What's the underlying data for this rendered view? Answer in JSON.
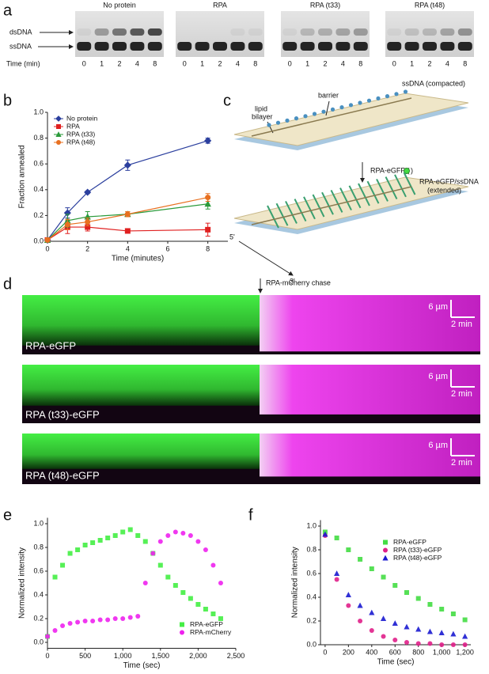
{
  "panel_labels": [
    "a",
    "b",
    "c",
    "d",
    "e",
    "f"
  ],
  "gel": {
    "lanes": [
      "No protein",
      "RPA",
      "RPA (t33)",
      "RPA (t48)"
    ],
    "bands": [
      "dsDNA",
      "ssDNA"
    ],
    "time_label": "Time (min)",
    "times": [
      0,
      1,
      2,
      4,
      8
    ]
  },
  "diagram": {
    "lipid_bilayer": [
      "lipid",
      "bilayer"
    ],
    "barrier": "barrier",
    "compacted": "ssDNA (compacted)",
    "protein": [
      "RPA-eGFP (",
      ")"
    ],
    "extended": [
      "RPA-eGFP/ssDNA",
      "(extended)"
    ],
    "ends": [
      "5'",
      "3'"
    ]
  },
  "kymographs": {
    "chase": "RPA-mCherry chase",
    "rows": [
      "RPA-eGFP",
      "RPA (t33)-eGFP",
      "RPA (t48)-eGFP"
    ],
    "scale_length": "6 µm",
    "scale_time": "2 min"
  },
  "chart_data": [
    {
      "type": "line",
      "x_label": "Time (minutes)",
      "y_label": "Fraction annealed",
      "x": [
        0,
        1,
        2,
        4,
        8
      ],
      "xlim": [
        0,
        9
      ],
      "xticks": [
        0,
        2,
        4,
        6,
        8
      ],
      "ylim": [
        0,
        1
      ],
      "yticks": [
        {
          "value": 0,
          "label": "0.0"
        },
        0.2,
        0.4,
        0.6,
        0.8,
        {
          "value": 1,
          "label": "1.0"
        }
      ],
      "legend": "upper left",
      "series": [
        {
          "name": "No protein",
          "color": "#2b3f9e",
          "marker": "diamond",
          "values": [
            0.01,
            0.22,
            0.38,
            0.59,
            0.78
          ],
          "errors": [
            0.01,
            0.04,
            0.01,
            0.04,
            0.02
          ]
        },
        {
          "name": "RPA",
          "color": "#e02020",
          "marker": "square",
          "values": [
            0.01,
            0.11,
            0.11,
            0.08,
            0.09
          ],
          "errors": [
            0.01,
            0.05,
            0.03,
            0.01,
            0.05
          ]
        },
        {
          "name": "RPA (t33)",
          "color": "#2a9a3a",
          "marker": "triangle",
          "values": [
            0.01,
            0.16,
            0.19,
            0.21,
            0.29
          ],
          "errors": [
            0.01,
            0.05,
            0.04,
            0.02,
            0.04
          ]
        },
        {
          "name": "RPA (t48)",
          "color": "#e87020",
          "marker": "circle",
          "values": [
            0.01,
            0.13,
            0.15,
            0.21,
            0.34
          ],
          "errors": [
            0.01,
            0.04,
            0.03,
            0.02,
            0.03
          ]
        }
      ]
    },
    {
      "type": "scatter",
      "x_label": "Time (sec)",
      "y_label": "Normalized intensity",
      "x": [
        0,
        100,
        200,
        300,
        400,
        500,
        600,
        700,
        800,
        900,
        1000,
        1100,
        1200,
        1300,
        1400,
        1500,
        1600,
        1700,
        1800,
        1900,
        2000,
        2100,
        2200,
        2300
      ],
      "xlim": [
        0,
        2500
      ],
      "xticks": [
        0,
        500,
        {
          "value": 1000,
          "label": "1,000"
        },
        {
          "value": 1500,
          "label": "1,500"
        },
        {
          "value": 2000,
          "label": "2,000"
        },
        {
          "value": 2500,
          "label": "2,500"
        }
      ],
      "ylim": [
        -0.05,
        1.05
      ],
      "yticks": [
        {
          "value": 0,
          "label": "0.0"
        },
        0.2,
        0.4,
        0.6,
        0.8,
        {
          "value": 1,
          "label": "1.0"
        }
      ],
      "legend": "lower right",
      "series": [
        {
          "name": "RPA-eGFP",
          "color": "#44ee44",
          "marker": "square",
          "values": [
            0.05,
            0.55,
            0.65,
            0.75,
            0.78,
            0.82,
            0.84,
            0.86,
            0.88,
            0.9,
            0.93,
            0.95,
            0.9,
            0.85,
            0.75,
            0.65,
            0.55,
            0.48,
            0.42,
            0.37,
            0.32,
            0.28,
            0.24,
            0.2
          ]
        },
        {
          "name": "RPA-mCherry",
          "color": "#ee22ee",
          "marker": "circle",
          "values": [
            0.05,
            0.1,
            0.14,
            0.16,
            0.17,
            0.18,
            0.18,
            0.19,
            0.19,
            0.2,
            0.2,
            0.21,
            0.22,
            0.5,
            0.75,
            0.85,
            0.9,
            0.93,
            0.92,
            0.9,
            0.85,
            0.78,
            0.65,
            0.5
          ]
        }
      ]
    },
    {
      "type": "scatter",
      "x_label": "Time (sec)",
      "y_label": "Normalized intensity",
      "x": [
        0,
        100,
        200,
        300,
        400,
        500,
        600,
        700,
        800,
        900,
        1000,
        1100,
        1200
      ],
      "xlim": [
        -40,
        1250
      ],
      "xticks": [
        0,
        200,
        400,
        600,
        800,
        {
          "value": 1000,
          "label": "1,000"
        },
        {
          "value": 1200,
          "label": "1,200"
        }
      ],
      "ylim": [
        0,
        1.05
      ],
      "yticks": [
        {
          "value": 0,
          "label": "0.0"
        },
        0.2,
        0.4,
        0.6,
        0.8,
        {
          "value": 1,
          "label": "1.0"
        }
      ],
      "legend": "upper right",
      "series": [
        {
          "name": "RPA-eGFP",
          "color": "#44dd44",
          "marker": "square",
          "values": [
            0.95,
            0.9,
            0.8,
            0.72,
            0.64,
            0.57,
            0.5,
            0.44,
            0.39,
            0.34,
            0.3,
            0.26,
            0.21
          ]
        },
        {
          "name": "RPA (t33)-eGFP",
          "color": "#e0208a",
          "marker": "circle",
          "values": [
            0.92,
            0.55,
            0.33,
            0.2,
            0.12,
            0.07,
            0.04,
            0.02,
            0.01,
            0.01,
            0,
            0,
            0
          ]
        },
        {
          "name": "RPA (t48)-eGFP",
          "color": "#1a1ad0",
          "marker": "triangle",
          "values": [
            0.93,
            0.6,
            0.42,
            0.33,
            0.27,
            0.22,
            0.18,
            0.15,
            0.13,
            0.11,
            0.1,
            0.09,
            0.07
          ]
        }
      ]
    }
  ]
}
